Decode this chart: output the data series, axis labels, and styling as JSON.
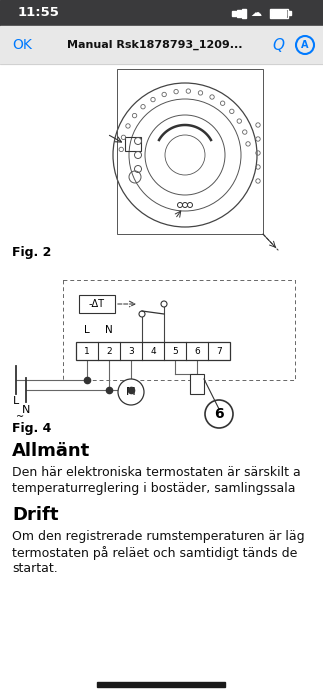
{
  "bg_color": "#ffffff",
  "status_bar_bg": "#3a3a3c",
  "status_bar_text": "11:55",
  "status_bar_color": "#ffffff",
  "nav_bar_bg": "#e8e8e8",
  "nav_ok_text": "OK",
  "nav_ok_color": "#007aff",
  "nav_title": "Manual Rsk1878793_1209...",
  "nav_title_color": "#111111",
  "fig2_label": "Fig. 2",
  "fig4_label": "Fig. 4",
  "terminal_labels": [
    "1",
    "2",
    "3",
    "4",
    "5",
    "6",
    "7"
  ],
  "delta_t_label": "-ΔT",
  "motor_label": "M",
  "L_label": "L",
  "N_label": "N",
  "tilde_label": "~",
  "circle6_label": "6",
  "section1_title": "Allmänt",
  "section1_line1": "Den här elektroniska termostaten är särskilt a",
  "section1_line2": "temperaturreglering i bostäder, samlingssala",
  "section2_title": "Drift",
  "section2_line1": "Om den registrerade rumstemperaturen är läg",
  "section2_line2": "termostaten på reläet och samtidigt tänds de",
  "section2_line3": "startat."
}
